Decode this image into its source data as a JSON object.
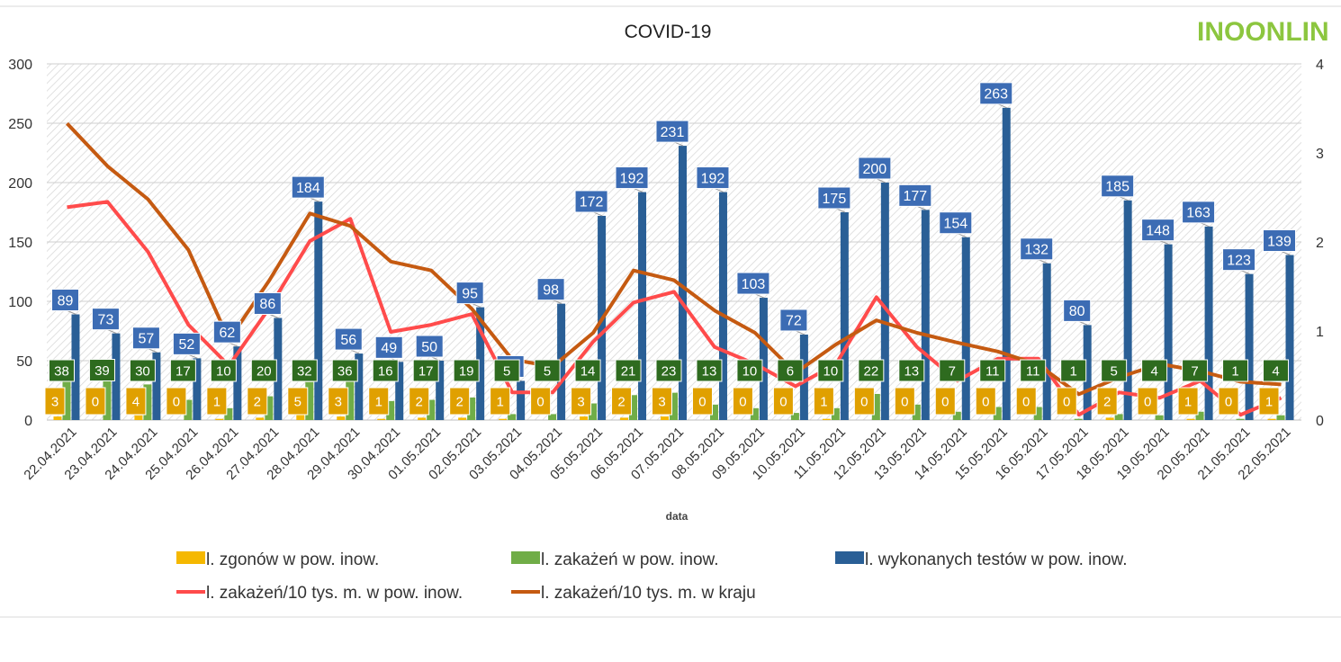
{
  "logo_text": "INOONLIN",
  "colors": {
    "deaths": "#f5b800",
    "infections_bar": "#70ad47",
    "tests": "#2a5f96",
    "line_local": "#ff4b4b",
    "line_country": "#c55a11",
    "label_tests": "#3c6cb4",
    "label_infections": "#2e6b1f",
    "label_deaths": "#e0a000"
  },
  "chart_data": {
    "type": "bar",
    "title": "COVID-19",
    "xlabel": "data",
    "ylabel": "",
    "ylim": [
      0,
      300
    ],
    "y2lim": [
      0,
      4
    ],
    "yticks": [
      0,
      50,
      100,
      150,
      200,
      250,
      300
    ],
    "y2ticks": [
      0,
      1,
      2,
      3,
      4
    ],
    "grid": true,
    "legend_position": "bottom",
    "categories": [
      "22.04.2021",
      "23.04.2021",
      "24.04.2021",
      "25.04.2021",
      "26.04.2021",
      "27.04.2021",
      "28.04.2021",
      "29.04.2021",
      "30.04.2021",
      "01.05.2021",
      "02.05.2021",
      "03.05.2021",
      "04.05.2021",
      "05.05.2021",
      "06.05.2021",
      "07.05.2021",
      "08.05.2021",
      "09.05.2021",
      "10.05.2021",
      "11.05.2021",
      "12.05.2021",
      "13.05.2021",
      "14.05.2021",
      "15.05.2021",
      "16.05.2021",
      "17.05.2021",
      "18.05.2021",
      "19.05.2021",
      "20.05.2021",
      "21.05.2021",
      "22.05.2021"
    ],
    "series": [
      {
        "name": "l. zgonów w pow. inow.",
        "kind": "bar",
        "axis": "left",
        "color": "#f5b800",
        "values": [
          3,
          0,
          4,
          0,
          1,
          2,
          5,
          3,
          1,
          2,
          2,
          1,
          0,
          3,
          2,
          3,
          0,
          0,
          0,
          1,
          0,
          0,
          0,
          0,
          0,
          0,
          2,
          0,
          1,
          0,
          1
        ]
      },
      {
        "name": "l. zakażeń w pow. inow.",
        "kind": "bar",
        "axis": "left",
        "color": "#70ad47",
        "values": [
          38,
          39,
          30,
          17,
          10,
          20,
          32,
          36,
          16,
          17,
          19,
          5,
          5,
          14,
          21,
          23,
          13,
          10,
          6,
          10,
          22,
          13,
          7,
          11,
          11,
          1,
          5,
          4,
          7,
          1,
          4
        ]
      },
      {
        "name": "l. wykonanych testów w pow. inow.",
        "kind": "bar",
        "axis": "left",
        "color": "#2a5f96",
        "values": [
          89,
          73,
          57,
          52,
          62,
          86,
          184,
          56,
          49,
          50,
          95,
          33,
          98,
          172,
          192,
          231,
          192,
          103,
          72,
          175,
          200,
          177,
          154,
          263,
          132,
          80,
          185,
          148,
          163,
          123,
          139
        ]
      },
      {
        "name": "l. zakażeń/10 tys. m. w pow. inow.",
        "kind": "line",
        "axis": "right",
        "color": "#ff4b4b",
        "values": [
          2.39,
          2.45,
          1.89,
          1.07,
          0.61,
          1.26,
          2.01,
          2.26,
          0.99,
          1.07,
          1.19,
          0.31,
          0.31,
          0.88,
          1.32,
          1.44,
          0.82,
          0.63,
          0.38,
          0.63,
          1.38,
          0.82,
          0.44,
          0.69,
          0.69,
          0.06,
          0.31,
          0.25,
          0.44,
          0.06,
          0.25
        ]
      },
      {
        "name": "l. zakażeń/10 tys. m. w kraju",
        "kind": "line",
        "axis": "right",
        "color": "#c55a11",
        "values": [
          3.33,
          2.85,
          2.48,
          1.91,
          0.9,
          1.57,
          2.32,
          2.18,
          1.78,
          1.68,
          1.25,
          0.68,
          0.6,
          0.98,
          1.68,
          1.57,
          1.23,
          0.98,
          0.53,
          0.85,
          1.12,
          0.98,
          0.87,
          0.77,
          0.62,
          0.29,
          0.48,
          0.63,
          0.55,
          0.43,
          0.4
        ]
      }
    ]
  }
}
